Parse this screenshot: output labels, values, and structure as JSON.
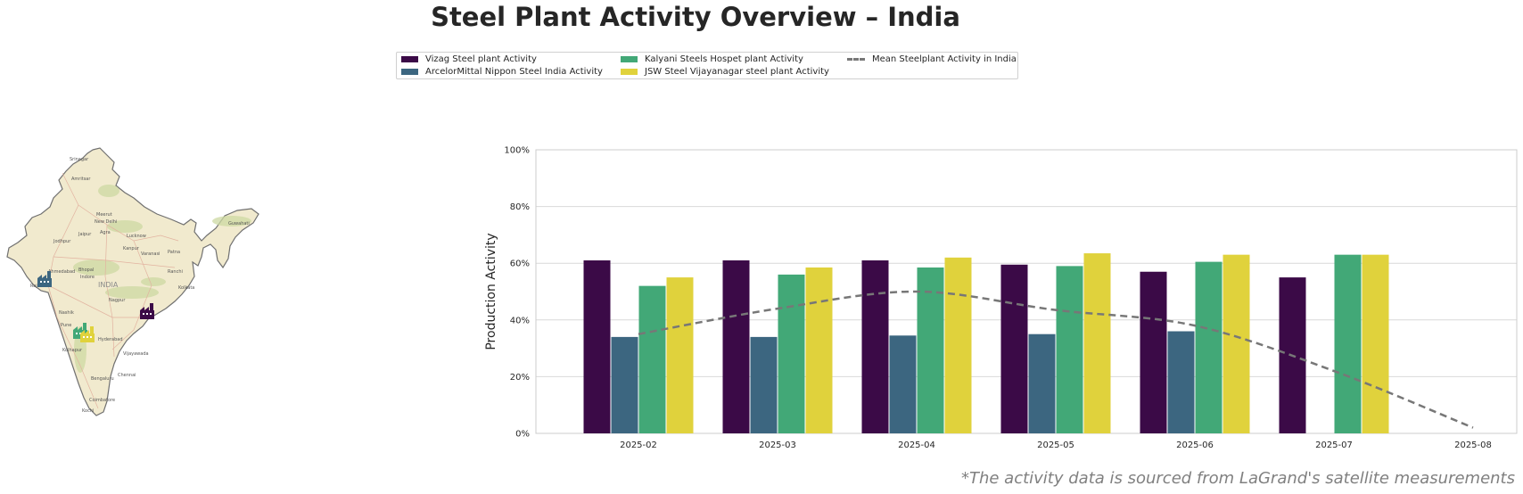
{
  "title": "Steel Plant Activity Overview – India",
  "legend": {
    "items": [
      {
        "label": "Vizag Steel plant Activity",
        "color": "#3b0a47",
        "kind": "bar"
      },
      {
        "label": "ArcelorMittal Nippon Steel India Activity",
        "color": "#3c6680",
        "kind": "bar"
      },
      {
        "label": "Kalyani Steels Hospet plant Activity",
        "color": "#42a877",
        "kind": "bar"
      },
      {
        "label": "JSW Steel Vijayanagar steel plant Activity",
        "color": "#e0d23c",
        "kind": "bar"
      },
      {
        "label": "Mean Steelplant Activity in India",
        "color": "#777777",
        "kind": "dashed-line"
      }
    ]
  },
  "map": {
    "country_label": "INDIA",
    "city_labels": [
      "Srinagar",
      "Amritsar",
      "Meerut",
      "New Delhi",
      "Jaipur",
      "Agra",
      "Lucknow",
      "Kanpur",
      "Varanasi",
      "Patna",
      "Guwahati",
      "Jodhpur",
      "Ahmedabad",
      "Bhopal",
      "Indore",
      "Ranchi",
      "Kolkata",
      "Rajkot",
      "Nagpur",
      "Nashik",
      "Pune",
      "Hyderabad",
      "Kolhapur",
      "Vijayawada",
      "Bengaluru",
      "Chennai",
      "Coimbatore",
      "Kochi"
    ],
    "markers": [
      {
        "name": "ArcelorMittal Nippon Steel India",
        "color": "#3c6680",
        "icon": "factory-icon"
      },
      {
        "name": "Vizag Steel plant",
        "color": "#3b0a47",
        "icon": "factory-icon"
      },
      {
        "name": "Kalyani Steels Hospet plant",
        "color": "#42a877",
        "icon": "factory-icon"
      },
      {
        "name": "JSW Steel Vijayanagar steel plant",
        "color": "#e0d23c",
        "icon": "factory-icon"
      }
    ]
  },
  "chart_data": {
    "type": "bar",
    "categories": [
      "2025-02",
      "2025-03",
      "2025-04",
      "2025-05",
      "2025-06",
      "2025-07",
      "2025-08"
    ],
    "series": [
      {
        "name": "Vizag Steel plant Activity",
        "color": "#3b0a47",
        "values": [
          61,
          61,
          61,
          59.5,
          57,
          55,
          null
        ]
      },
      {
        "name": "ArcelorMittal Nippon Steel India Activity",
        "color": "#3c6680",
        "values": [
          34,
          34,
          34.5,
          35,
          36,
          null,
          null
        ]
      },
      {
        "name": "Kalyani Steels Hospet plant Activity",
        "color": "#42a877",
        "values": [
          52,
          56,
          58.5,
          59,
          60.5,
          63,
          null
        ]
      },
      {
        "name": "JSW Steel Vijayanagar steel plant Activity",
        "color": "#e0d23c",
        "values": [
          55,
          58.5,
          62,
          63.5,
          63,
          63,
          null
        ]
      }
    ],
    "mean_line": {
      "name": "Mean Steelplant Activity in India",
      "color": "#777777",
      "values": [
        35,
        44,
        50,
        43.5,
        38,
        22,
        2
      ]
    },
    "title": "Steel Plant Activity Overview – India",
    "xlabel": "",
    "ylabel": "Production Activity",
    "ylim": [
      0,
      100
    ],
    "yticks": [
      "0%",
      "20%",
      "40%",
      "60%",
      "80%",
      "100%"
    ],
    "grid": "horizontal",
    "legend_position": "top-center"
  },
  "footnote": "*The activity data is sourced from LaGrand's satellite measurements"
}
